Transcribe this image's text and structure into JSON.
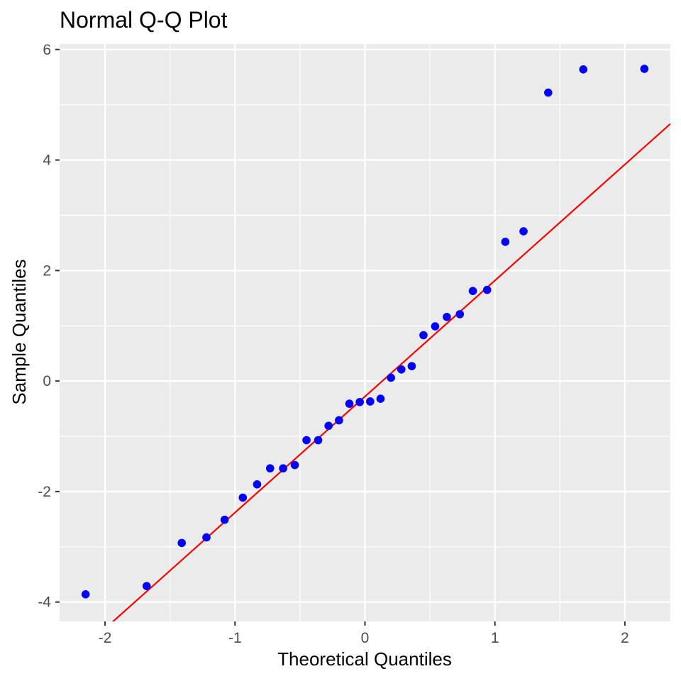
{
  "chart_data": {
    "type": "scatter",
    "title": "Normal Q-Q Plot",
    "xlabel": "Theoretical Quantiles",
    "ylabel": "Sample Quantiles",
    "xlim": [
      -2.35,
      2.35
    ],
    "ylim": [
      -4.35,
      6.1
    ],
    "x_ticks": [
      -2,
      -1,
      0,
      1,
      2
    ],
    "x_tick_labels": [
      "-2",
      "-1",
      "0",
      "1",
      "2"
    ],
    "y_ticks": [
      -4,
      -2,
      0,
      2,
      4,
      6
    ],
    "y_tick_labels": [
      "-4",
      "-2",
      "0",
      "2",
      "4",
      "6"
    ],
    "grid": true,
    "panel_background": "#ebebeb",
    "grid_color": "#ffffff",
    "point_color": "#0000ff",
    "line_color": "#ff0000",
    "points": [
      {
        "x": -2.15,
        "y": -3.86
      },
      {
        "x": -1.68,
        "y": -3.71
      },
      {
        "x": -1.41,
        "y": -2.93
      },
      {
        "x": -1.22,
        "y": -2.83
      },
      {
        "x": -1.08,
        "y": -2.51
      },
      {
        "x": -0.94,
        "y": -2.11
      },
      {
        "x": -0.83,
        "y": -1.87
      },
      {
        "x": -0.73,
        "y": -1.58
      },
      {
        "x": -0.63,
        "y": -1.58
      },
      {
        "x": -0.54,
        "y": -1.52
      },
      {
        "x": -0.45,
        "y": -1.07
      },
      {
        "x": -0.36,
        "y": -1.07
      },
      {
        "x": -0.28,
        "y": -0.81
      },
      {
        "x": -0.2,
        "y": -0.71
      },
      {
        "x": -0.12,
        "y": -0.41
      },
      {
        "x": -0.04,
        "y": -0.38
      },
      {
        "x": 0.04,
        "y": -0.37
      },
      {
        "x": 0.12,
        "y": -0.32
      },
      {
        "x": 0.2,
        "y": 0.06
      },
      {
        "x": 0.28,
        "y": 0.21
      },
      {
        "x": 0.36,
        "y": 0.27
      },
      {
        "x": 0.45,
        "y": 0.83
      },
      {
        "x": 0.54,
        "y": 0.99
      },
      {
        "x": 0.63,
        "y": 1.16
      },
      {
        "x": 0.73,
        "y": 1.21
      },
      {
        "x": 0.83,
        "y": 1.63
      },
      {
        "x": 0.94,
        "y": 1.65
      },
      {
        "x": 1.08,
        "y": 2.52
      },
      {
        "x": 1.22,
        "y": 2.71
      },
      {
        "x": 1.41,
        "y": 5.22
      },
      {
        "x": 1.68,
        "y": 5.64
      },
      {
        "x": 2.15,
        "y": 5.65
      }
    ],
    "reference_line": {
      "intercept": -0.28,
      "slope": 2.1
    }
  }
}
